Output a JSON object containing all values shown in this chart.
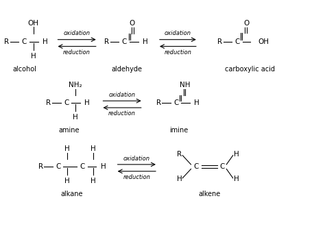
{
  "bg_color": "#ffffff",
  "text_color": "#000000",
  "figsize": [
    4.74,
    3.34
  ],
  "dpi": 100,
  "row1": {
    "alcohol_label": "alcohol",
    "aldehyde_label": "aldehyde",
    "carboxylic_label": "carboxylic acid",
    "arrow1_oxidation": "oxidation",
    "arrow1_reduction": "reduction",
    "arrow2_oxidation": "oxidation",
    "arrow2_reduction": "reduction"
  },
  "row2": {
    "amine_label": "amine",
    "imine_label": "imine",
    "arrow_oxidation": "oxidation",
    "arrow_reduction": "reduction"
  },
  "row3": {
    "alkane_label": "alkane",
    "alkene_label": "alkene",
    "arrow_oxidation": "oxidation",
    "arrow_reduction": "reduction"
  }
}
